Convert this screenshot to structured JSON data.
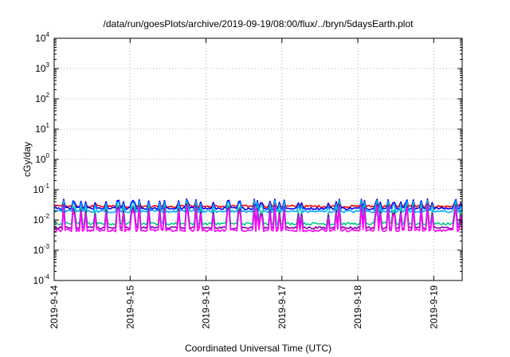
{
  "chart_data": {
    "type": "line",
    "title": "/data/run/goesPlots/archive/2019-09-19/08:00/flux/../bryn/5daysEarth.plot",
    "xlabel": "Coordinated Universal Time (UTC)",
    "ylabel": "cGy/day",
    "y_scale": "log",
    "ylim": [
      0.0001,
      10000
    ],
    "xlim": [
      "2019-09-14T00:00",
      "2019-09-19T09:00"
    ],
    "grid": true,
    "legend": "none",
    "x_ticks": [
      "2019-9-14",
      "2019-9-15",
      "2019-9-16",
      "2019-9-17",
      "2019-9-18",
      "2019-9-19"
    ],
    "y_ticks": [
      {
        "base": "10",
        "exp": "-4",
        "value": 0.0001
      },
      {
        "base": "10",
        "exp": "-3",
        "value": 0.001
      },
      {
        "base": "10",
        "exp": "-2",
        "value": 0.01
      },
      {
        "base": "10",
        "exp": "-1",
        "value": 0.1
      },
      {
        "base": "10",
        "exp": "0",
        "value": 1
      },
      {
        "base": "10",
        "exp": "1",
        "value": 10
      },
      {
        "base": "10",
        "exp": "2",
        "value": 100
      },
      {
        "base": "10",
        "exp": "3",
        "value": 1000
      },
      {
        "base": "10",
        "exp": "4",
        "value": 10000
      }
    ],
    "series": [
      {
        "color": "#ff0000",
        "baseline": 0.028,
        "peak": 0.045
      },
      {
        "color": "#0000ff",
        "baseline": 0.024,
        "peak": 0.05
      },
      {
        "color": "#00aaff",
        "baseline": 0.019,
        "peak": 0.045
      },
      {
        "color": "#00cc88",
        "baseline": 0.0075,
        "peak": 0.04
      },
      {
        "color": "#8800aa",
        "baseline": 0.0055,
        "peak": 0.035
      },
      {
        "color": "#ff00ff",
        "baseline": 0.0045,
        "peak": 0.03
      }
    ]
  }
}
